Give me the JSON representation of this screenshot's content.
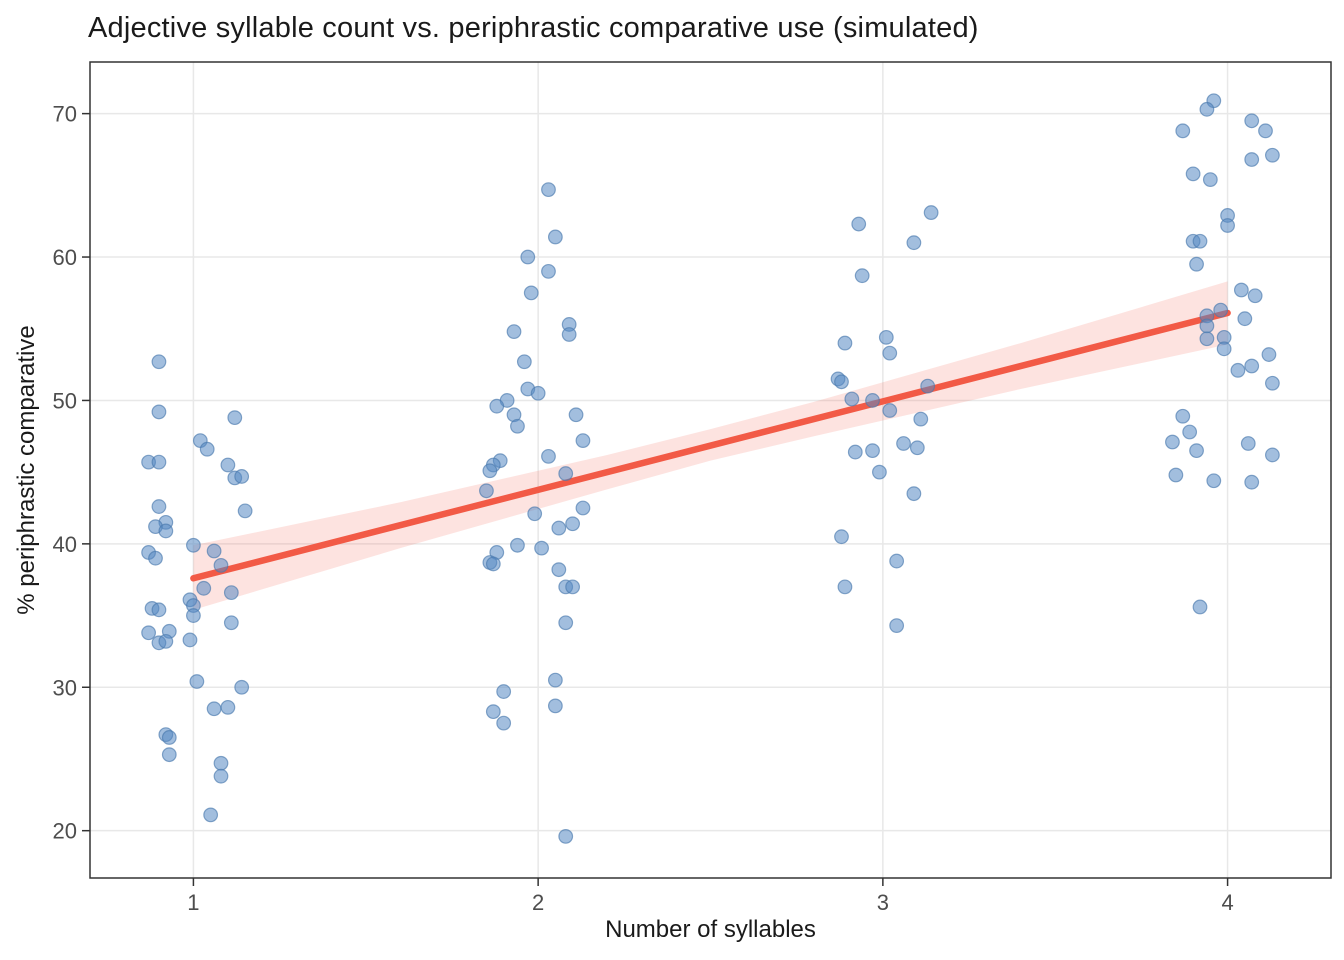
{
  "chart_data": {
    "type": "scatter",
    "title": "Adjective syllable count vs. periphrastic comparative use (simulated)",
    "xlabel": "Number of syllables",
    "ylabel": "% periphrastic comparative",
    "xlim": [
      0.7,
      4.3
    ],
    "ylim": [
      16.7,
      73.6
    ],
    "x_ticks": [
      1,
      2,
      3,
      4
    ],
    "y_ticks": [
      20,
      30,
      40,
      50,
      60,
      70
    ],
    "grid": "major-only",
    "legend": "none",
    "points": [
      [
        0.9,
        52.7
      ],
      [
        0.9,
        49.2
      ],
      [
        1.12,
        48.8
      ],
      [
        1.02,
        47.2
      ],
      [
        1.04,
        46.6
      ],
      [
        0.87,
        45.7
      ],
      [
        0.9,
        45.7
      ],
      [
        1.1,
        45.5
      ],
      [
        1.12,
        44.6
      ],
      [
        1.14,
        44.7
      ],
      [
        0.9,
        42.6
      ],
      [
        1.15,
        42.3
      ],
      [
        0.92,
        41.5
      ],
      [
        0.89,
        41.2
      ],
      [
        0.92,
        40.9
      ],
      [
        1.0,
        39.9
      ],
      [
        1.06,
        39.5
      ],
      [
        0.87,
        39.4
      ],
      [
        0.89,
        39.0
      ],
      [
        1.08,
        38.5
      ],
      [
        1.03,
        36.9
      ],
      [
        1.11,
        36.6
      ],
      [
        0.99,
        36.1
      ],
      [
        1.0,
        35.7
      ],
      [
        0.88,
        35.5
      ],
      [
        0.9,
        35.4
      ],
      [
        1.0,
        35.0
      ],
      [
        1.11,
        34.5
      ],
      [
        0.87,
        33.8
      ],
      [
        0.93,
        33.9
      ],
      [
        0.9,
        33.1
      ],
      [
        0.92,
        33.2
      ],
      [
        0.99,
        33.3
      ],
      [
        1.01,
        30.4
      ],
      [
        1.14,
        30.0
      ],
      [
        1.06,
        28.5
      ],
      [
        1.1,
        28.6
      ],
      [
        0.92,
        26.7
      ],
      [
        0.93,
        26.5
      ],
      [
        0.93,
        25.3
      ],
      [
        1.08,
        24.7
      ],
      [
        1.08,
        23.8
      ],
      [
        1.05,
        21.1
      ],
      [
        2.03,
        64.7
      ],
      [
        2.05,
        61.4
      ],
      [
        1.97,
        60.0
      ],
      [
        2.03,
        59.0
      ],
      [
        1.98,
        57.5
      ],
      [
        2.09,
        55.3
      ],
      [
        1.93,
        54.8
      ],
      [
        2.09,
        54.6
      ],
      [
        1.96,
        52.7
      ],
      [
        1.97,
        50.8
      ],
      [
        2.0,
        50.5
      ],
      [
        1.91,
        50.0
      ],
      [
        1.88,
        49.6
      ],
      [
        1.93,
        49.0
      ],
      [
        2.11,
        49.0
      ],
      [
        1.94,
        48.2
      ],
      [
        2.13,
        47.2
      ],
      [
        2.03,
        46.1
      ],
      [
        1.89,
        45.8
      ],
      [
        1.87,
        45.5
      ],
      [
        1.86,
        45.1
      ],
      [
        2.08,
        44.9
      ],
      [
        1.85,
        43.7
      ],
      [
        2.13,
        42.5
      ],
      [
        1.99,
        42.1
      ],
      [
        2.1,
        41.4
      ],
      [
        2.06,
        41.1
      ],
      [
        1.94,
        39.9
      ],
      [
        2.01,
        39.7
      ],
      [
        1.88,
        39.4
      ],
      [
        1.86,
        38.7
      ],
      [
        1.87,
        38.6
      ],
      [
        2.06,
        38.2
      ],
      [
        2.08,
        37.0
      ],
      [
        2.1,
        37.0
      ],
      [
        2.08,
        34.5
      ],
      [
        2.05,
        30.5
      ],
      [
        1.9,
        29.7
      ],
      [
        2.05,
        28.7
      ],
      [
        1.87,
        28.3
      ],
      [
        1.9,
        27.5
      ],
      [
        2.08,
        19.6
      ],
      [
        3.14,
        63.1
      ],
      [
        2.93,
        62.3
      ],
      [
        3.09,
        61.0
      ],
      [
        2.94,
        58.7
      ],
      [
        3.01,
        54.4
      ],
      [
        2.89,
        54.0
      ],
      [
        3.02,
        53.3
      ],
      [
        2.87,
        51.5
      ],
      [
        2.88,
        51.3
      ],
      [
        3.13,
        51.0
      ],
      [
        2.91,
        50.1
      ],
      [
        2.97,
        50.0
      ],
      [
        3.02,
        49.3
      ],
      [
        3.11,
        48.7
      ],
      [
        3.06,
        47.0
      ],
      [
        3.1,
        46.7
      ],
      [
        2.97,
        46.5
      ],
      [
        2.92,
        46.4
      ],
      [
        2.99,
        45.0
      ],
      [
        3.09,
        43.5
      ],
      [
        2.88,
        40.5
      ],
      [
        3.04,
        38.8
      ],
      [
        2.89,
        37.0
      ],
      [
        3.04,
        34.3
      ],
      [
        3.96,
        70.9
      ],
      [
        3.94,
        70.3
      ],
      [
        4.07,
        69.5
      ],
      [
        3.87,
        68.8
      ],
      [
        4.11,
        68.8
      ],
      [
        4.13,
        67.1
      ],
      [
        4.07,
        66.8
      ],
      [
        3.9,
        65.8
      ],
      [
        3.95,
        65.4
      ],
      [
        4.0,
        62.9
      ],
      [
        4.0,
        62.2
      ],
      [
        3.9,
        61.1
      ],
      [
        3.92,
        61.1
      ],
      [
        3.91,
        59.5
      ],
      [
        4.04,
        57.7
      ],
      [
        4.08,
        57.3
      ],
      [
        3.98,
        56.3
      ],
      [
        3.94,
        55.9
      ],
      [
        4.05,
        55.7
      ],
      [
        3.94,
        55.2
      ],
      [
        3.99,
        54.4
      ],
      [
        3.94,
        54.3
      ],
      [
        3.99,
        53.6
      ],
      [
        4.12,
        53.2
      ],
      [
        4.07,
        52.4
      ],
      [
        4.03,
        52.1
      ],
      [
        4.13,
        51.2
      ],
      [
        3.87,
        48.9
      ],
      [
        3.89,
        47.8
      ],
      [
        3.84,
        47.1
      ],
      [
        4.06,
        47.0
      ],
      [
        3.91,
        46.5
      ],
      [
        4.13,
        46.2
      ],
      [
        3.85,
        44.8
      ],
      [
        3.96,
        44.4
      ],
      [
        4.07,
        44.3
      ],
      [
        3.92,
        35.6
      ]
    ],
    "trend": {
      "fit": "linear",
      "x": [
        1,
        4
      ],
      "y": [
        37.6,
        56.1
      ]
    },
    "ci_band": {
      "x": [
        1.0,
        1.6,
        2.2,
        2.5,
        2.8,
        3.4,
        4.0
      ],
      "upper": [
        39.9,
        42.9,
        46.2,
        48.0,
        49.9,
        54.0,
        58.3
      ],
      "lower": [
        35.4,
        39.7,
        43.8,
        45.8,
        47.5,
        50.8,
        53.9
      ]
    },
    "colors": {
      "point": "#5689C3",
      "point_stroke": "#4A7AAE",
      "line": "#F25A46",
      "band": "#F25A46",
      "grid": "#E8E8E8",
      "panel_border": "#333333",
      "tick": "#333333",
      "tick_label": "#4D4D4D",
      "text": "#1A1A1A",
      "background": "#FFFFFF"
    },
    "style": {
      "point_radius": 6.8,
      "point_opacity": 0.55,
      "line_width": 6.5,
      "band_opacity": 0.17
    }
  }
}
